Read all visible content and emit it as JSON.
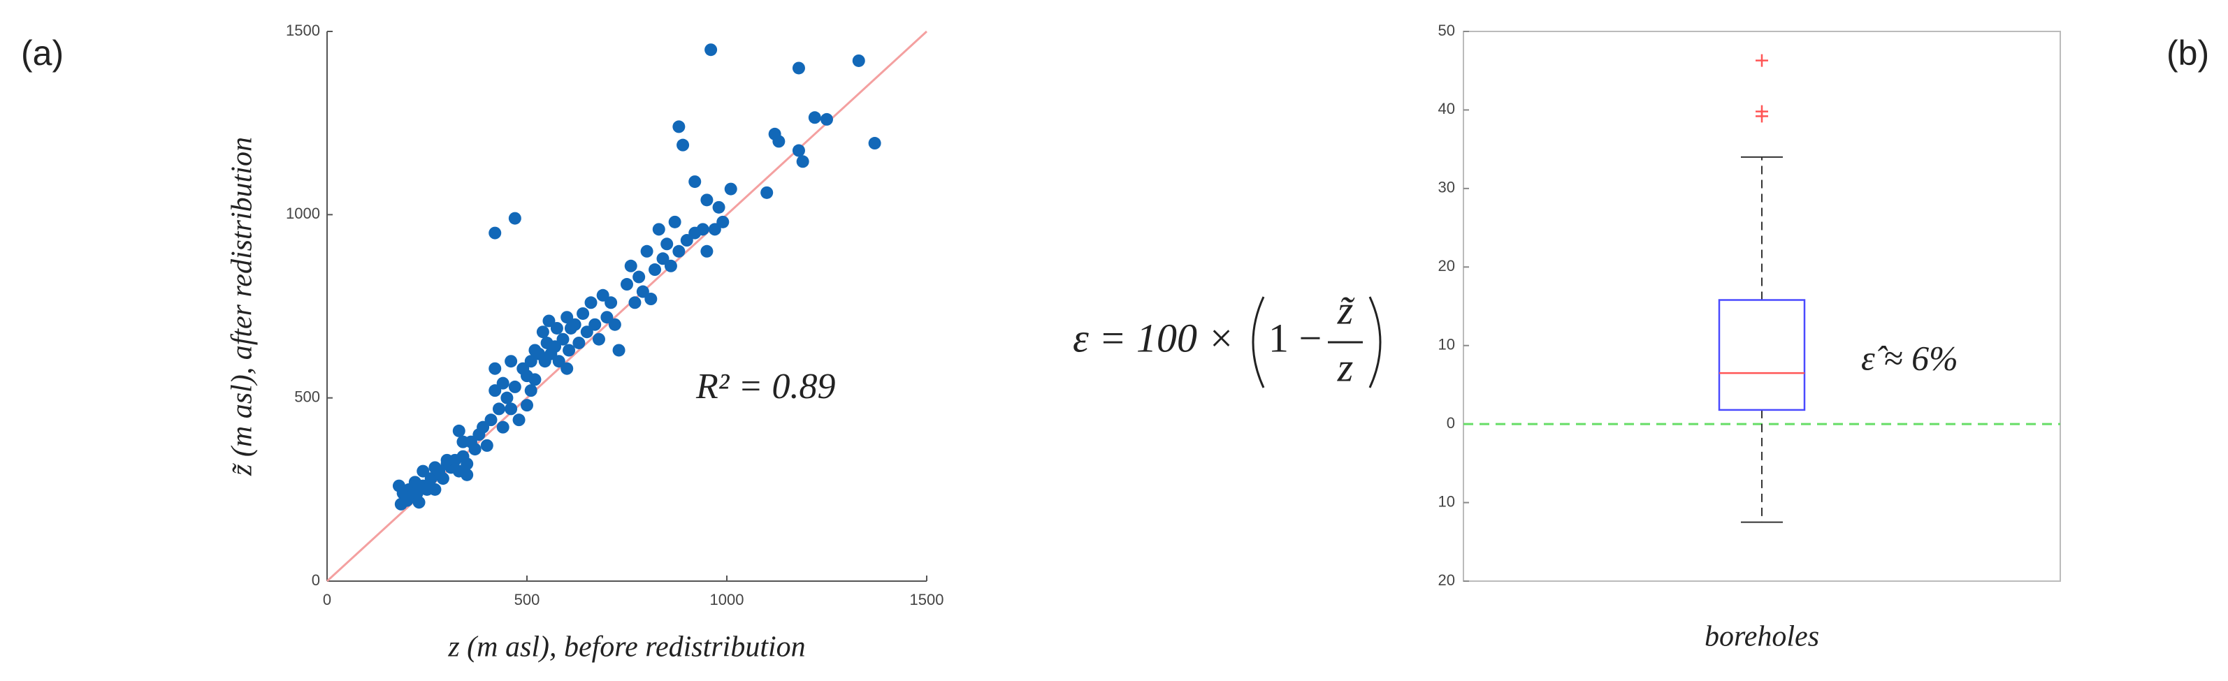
{
  "chart_data": [
    {
      "type": "scatter",
      "panel_label": "(a)",
      "xlabel": "z (m asl), before redistribution",
      "ylabel": "z̃ (m asl), after redistribution",
      "annotation": "R² = 0.89",
      "color": "#1268b8",
      "identity_line": true,
      "identity_color": "#f4a0a0",
      "xlim": [
        0,
        1500
      ],
      "ylim": [
        0,
        1500
      ],
      "xticks": [
        0,
        500,
        1000,
        1500
      ],
      "yticks": [
        0,
        500,
        1000,
        1500
      ],
      "x": [
        420,
        470,
        960,
        1180,
        1330,
        1370,
        1250,
        1220,
        1180,
        1190,
        1120,
        1130,
        1100,
        880,
        890,
        920,
        950,
        1010,
        980,
        180,
        185,
        190,
        200,
        205,
        210,
        220,
        225,
        230,
        240,
        250,
        260,
        270,
        280,
        290,
        300,
        310,
        320,
        330,
        340,
        350,
        360,
        370,
        380,
        390,
        400,
        410,
        420,
        430,
        440,
        450,
        460,
        470,
        480,
        490,
        500,
        510,
        520,
        530,
        540,
        545,
        550,
        555,
        560,
        570,
        575,
        580,
        590,
        600,
        605,
        610,
        620,
        630,
        640,
        650,
        660,
        670,
        680,
        690,
        700,
        710,
        720,
        730,
        750,
        760,
        770,
        780,
        790,
        800,
        810,
        820,
        830,
        840,
        850,
        860,
        870,
        880,
        900,
        920,
        940,
        950,
        970,
        990,
        330,
        340,
        300,
        350,
        270,
        240,
        420,
        440,
        500,
        510,
        460,
        520,
        600
      ],
      "y": [
        950,
        990,
        1450,
        1400,
        1420,
        1195,
        1260,
        1265,
        1175,
        1145,
        1220,
        1200,
        1060,
        1240,
        1190,
        1090,
        1040,
        1070,
        1020,
        260,
        210,
        240,
        220,
        250,
        230,
        270,
        240,
        215,
        260,
        250,
        280,
        250,
        300,
        280,
        320,
        310,
        330,
        300,
        340,
        320,
        380,
        360,
        400,
        420,
        370,
        440,
        520,
        470,
        420,
        500,
        470,
        530,
        440,
        580,
        560,
        600,
        630,
        620,
        680,
        600,
        650,
        710,
        620,
        640,
        690,
        600,
        660,
        720,
        630,
        690,
        700,
        650,
        730,
        680,
        760,
        700,
        660,
        780,
        720,
        760,
        700,
        630,
        810,
        860,
        760,
        830,
        790,
        900,
        770,
        850,
        960,
        880,
        920,
        860,
        980,
        900,
        930,
        950,
        960,
        900,
        960,
        980,
        410,
        380,
        330,
        290,
        310,
        300,
        580,
        540,
        480,
        520,
        600,
        550,
        580
      ]
    },
    {
      "type": "box",
      "panel_label": "(b)",
      "categories": [
        "boreholes"
      ],
      "annotation": "ε̂ ≈ 6%",
      "ylim": [
        -20,
        50
      ],
      "yticks": [
        {
          "value": -20,
          "label": "20"
        },
        {
          "value": -10,
          "label": "10"
        },
        0,
        10,
        20,
        30,
        40,
        50
      ],
      "reference_line": 0,
      "reference_color": "#66dd66",
      "box_color": "#4a4aff",
      "median_color": "#ff5555",
      "outlier_color": "#ff5555",
      "whislo": -12.5,
      "q1": 1.8,
      "median": 6.5,
      "q3": 15.8,
      "whishi": 34,
      "outliers": [
        46.3,
        39.8,
        39.2
      ]
    }
  ],
  "formula": {
    "lhs": "ε = 100 ×",
    "one": "1 −",
    "numerator": "z̃",
    "denominator": "z"
  }
}
